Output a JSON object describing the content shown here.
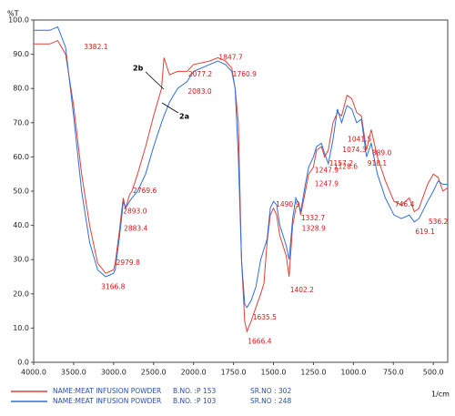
{
  "chart_data": {
    "type": "line",
    "ylabel": "%T",
    "xlabel": "1/cm",
    "xlim": [
      4000,
      410
    ],
    "x_scale_break": 2000,
    "ylim": [
      0,
      100
    ],
    "xticks": [
      {
        "value": 4000,
        "label": "4000.0"
      },
      {
        "value": 3500,
        "label": "3500.0"
      },
      {
        "value": 3000,
        "label": "3000.0"
      },
      {
        "value": 2500,
        "label": "2500.0"
      },
      {
        "value": 2000,
        "label": "2000.0"
      },
      {
        "value": 1750,
        "label": "1750.0"
      },
      {
        "value": 1500,
        "label": "1500.0"
      },
      {
        "value": 1250,
        "label": "1250.0"
      },
      {
        "value": 1000,
        "label": "1000.0"
      },
      {
        "value": 750,
        "label": "750.0"
      },
      {
        "value": 500,
        "label": "500.0"
      }
    ],
    "yticks": [
      {
        "value": 0,
        "label": "0.0"
      },
      {
        "value": 10,
        "label": "10.0"
      },
      {
        "value": 20,
        "label": "20.0"
      },
      {
        "value": 30,
        "label": "30.0"
      },
      {
        "value": 40,
        "label": "40.0"
      },
      {
        "value": 50,
        "label": "50.0"
      },
      {
        "value": 60,
        "label": "60.0"
      },
      {
        "value": 70,
        "label": "70.0"
      },
      {
        "value": 80,
        "label": "80.0"
      },
      {
        "value": 90,
        "label": "90.0"
      },
      {
        "value": 100,
        "label": "100.0"
      }
    ],
    "x": [
      4000,
      3800,
      3700,
      3600,
      3500,
      3400,
      3300,
      3200,
      3100,
      3000,
      2980,
      2930,
      2900,
      2880,
      2850,
      2800,
      2770,
      2700,
      2600,
      2500,
      2400,
      2370,
      2300,
      2200,
      2080,
      2000,
      1900,
      1848,
      1800,
      1761,
      1740,
      1720,
      1700,
      1680,
      1666,
      1640,
      1610,
      1580,
      1560,
      1540,
      1520,
      1500,
      1480,
      1460,
      1440,
      1420,
      1402,
      1380,
      1360,
      1340,
      1330,
      1300,
      1280,
      1250,
      1230,
      1200,
      1180,
      1157,
      1128,
      1100,
      1074,
      1040,
      1010,
      980,
      950,
      918,
      889,
      850,
      800,
      746,
      700,
      650,
      619,
      590,
      536,
      500,
      470,
      440,
      410
    ],
    "series": [
      {
        "name": "NAME:MEAT INFUSION POWDER",
        "label": "2b",
        "b_no": "B.NO. :P 153",
        "sr_no": "SR.NO : 302",
        "color": "#e0403a",
        "values": [
          93,
          93,
          94,
          90,
          75,
          55,
          40,
          29,
          26,
          27,
          29,
          38,
          44,
          48,
          45,
          49,
          50,
          55,
          63,
          72,
          80,
          89,
          84,
          85,
          85,
          87,
          88,
          89,
          88,
          86,
          80,
          70,
          30,
          12,
          9,
          12,
          16,
          20,
          23,
          35,
          43,
          45,
          43,
          37,
          34,
          31,
          25,
          40,
          45,
          46,
          43,
          50,
          55,
          57,
          62,
          63,
          60,
          62,
          70,
          73,
          72,
          78,
          77,
          73,
          72,
          62,
          68,
          60,
          53,
          47,
          46,
          48,
          44,
          45,
          52,
          55,
          54,
          50,
          51
        ]
      },
      {
        "name": "NAME:MEAT INFUSION POWDER",
        "label": "2a",
        "b_no": "B.NO. :P 103",
        "sr_no": "SR.NO : 248",
        "color": "#2f6fd6",
        "values": [
          97,
          97,
          98,
          92,
          72,
          50,
          35,
          27,
          25,
          26,
          27,
          36,
          42,
          47,
          45,
          47,
          48,
          50,
          55,
          63,
          70,
          72,
          76,
          80,
          82,
          85,
          87,
          88,
          87,
          85,
          80,
          60,
          30,
          17,
          16,
          18,
          22,
          30,
          33,
          36,
          45,
          47,
          46,
          40,
          37,
          34,
          30,
          42,
          48,
          46,
          44,
          52,
          57,
          60,
          63,
          64,
          61,
          58,
          65,
          74,
          70,
          75,
          74,
          70,
          71,
          60,
          64,
          55,
          48,
          43,
          42,
          43,
          41,
          42,
          47,
          50,
          53,
          52,
          52
        ]
      }
    ],
    "annotations": [
      {
        "label": "3382.1",
        "x": 3382.1,
        "y": 92
      },
      {
        "label": "2769.6",
        "x": 2769.6,
        "y": 50
      },
      {
        "label": "2893.0",
        "x": 2893.0,
        "y": 44
      },
      {
        "label": "2883.4",
        "x": 2883.4,
        "y": 39
      },
      {
        "label": "2979.8",
        "x": 2979.8,
        "y": 29
      },
      {
        "label": "3166.8",
        "x": 3166.8,
        "y": 22
      },
      {
        "label": "2077.2",
        "x": 2077.2,
        "y": 84
      },
      {
        "label": "2083.0",
        "x": 2083.0,
        "y": 79
      },
      {
        "label": "1847.7",
        "x": 1847.7,
        "y": 89
      },
      {
        "label": "1760.9",
        "x": 1760.9,
        "y": 84
      },
      {
        "label": "1666.4",
        "x": 1666.4,
        "y": 6
      },
      {
        "label": "1635.5",
        "x": 1635.5,
        "y": 13
      },
      {
        "label": "1490.9",
        "x": 1490.9,
        "y": 46
      },
      {
        "label": "1402.2",
        "x": 1402.2,
        "y": 21
      },
      {
        "label": "1332.7",
        "x": 1332.7,
        "y": 42
      },
      {
        "label": "1328.9",
        "x": 1328.9,
        "y": 39
      },
      {
        "label": "1247.9",
        "x": 1247.9,
        "y": 56
      },
      {
        "label": "1247.9",
        "x": 1247.9,
        "y": 52
      },
      {
        "label": "1157.2",
        "x": 1157.2,
        "y": 58
      },
      {
        "label": "1128.6",
        "x": 1128.6,
        "y": 57
      },
      {
        "label": "1074.3",
        "x": 1074.3,
        "y": 62
      },
      {
        "label": "1041.5",
        "x": 1041.5,
        "y": 65
      },
      {
        "label": "918.1",
        "x": 918.1,
        "y": 58
      },
      {
        "label": "889.0",
        "x": 889.0,
        "y": 61
      },
      {
        "label": "746.4",
        "x": 746.4,
        "y": 46
      },
      {
        "label": "619.1",
        "x": 619.1,
        "y": 38
      },
      {
        "label": "536.2",
        "x": 536.2,
        "y": 41
      }
    ]
  }
}
